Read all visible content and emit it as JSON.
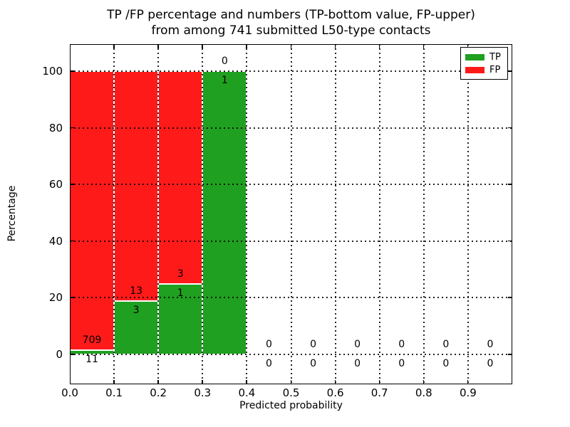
{
  "figure": {
    "title_line1": "TP /FP percentage and numbers (TP-bottom value, FP-upper)",
    "title_line2": "from among 741 submitted L50-type contacts",
    "xlabel": "Predicted probability",
    "ylabel": "Percentage"
  },
  "legend": {
    "items": [
      {
        "label": "TP",
        "color": "#20a020"
      },
      {
        "label": "FP",
        "color": "#ff1a1a"
      }
    ]
  },
  "chart_data": {
    "type": "bar",
    "stacked": true,
    "title": "TP /FP percentage and numbers (TP-bottom value, FP-upper) from among 741 submitted L50-type contacts",
    "xlabel": "Predicted probability",
    "ylabel": "Percentage",
    "total_contacts": 741,
    "bin_width": 0.1,
    "categories": [
      "0.0-0.1",
      "0.1-0.2",
      "0.2-0.3",
      "0.3-0.4",
      "0.4-0.5",
      "0.5-0.6",
      "0.6-0.7",
      "0.7-0.8",
      "0.8-0.9",
      "0.9-1.0"
    ],
    "x_tick_labels": [
      "0.0",
      "0.1",
      "0.2",
      "0.3",
      "0.4",
      "0.5",
      "0.6",
      "0.7",
      "0.8",
      "0.9"
    ],
    "y_ticks": [
      0,
      20,
      40,
      60,
      80,
      100
    ],
    "xlim": [
      0.0,
      1.0
    ],
    "ylim": [
      -11,
      110
    ],
    "grid": "dotted, both axes, drawn above bars",
    "legend_position": "upper right",
    "series": [
      {
        "name": "TP",
        "color": "#20a020",
        "counts": [
          11,
          3,
          1,
          1,
          0,
          0,
          0,
          0,
          0,
          0
        ],
        "percentages": [
          1.53,
          18.75,
          25,
          100,
          0,
          0,
          0,
          0,
          0,
          0
        ]
      },
      {
        "name": "FP",
        "color": "#ff1a1a",
        "counts": [
          709,
          13,
          3,
          0,
          0,
          0,
          0,
          0,
          0,
          0
        ],
        "percentages": [
          98.47,
          81.25,
          75,
          0,
          0,
          0,
          0,
          0,
          0,
          0
        ]
      }
    ],
    "annotation_note": "TP count shown below segment boundary, FP count shown above it"
  }
}
